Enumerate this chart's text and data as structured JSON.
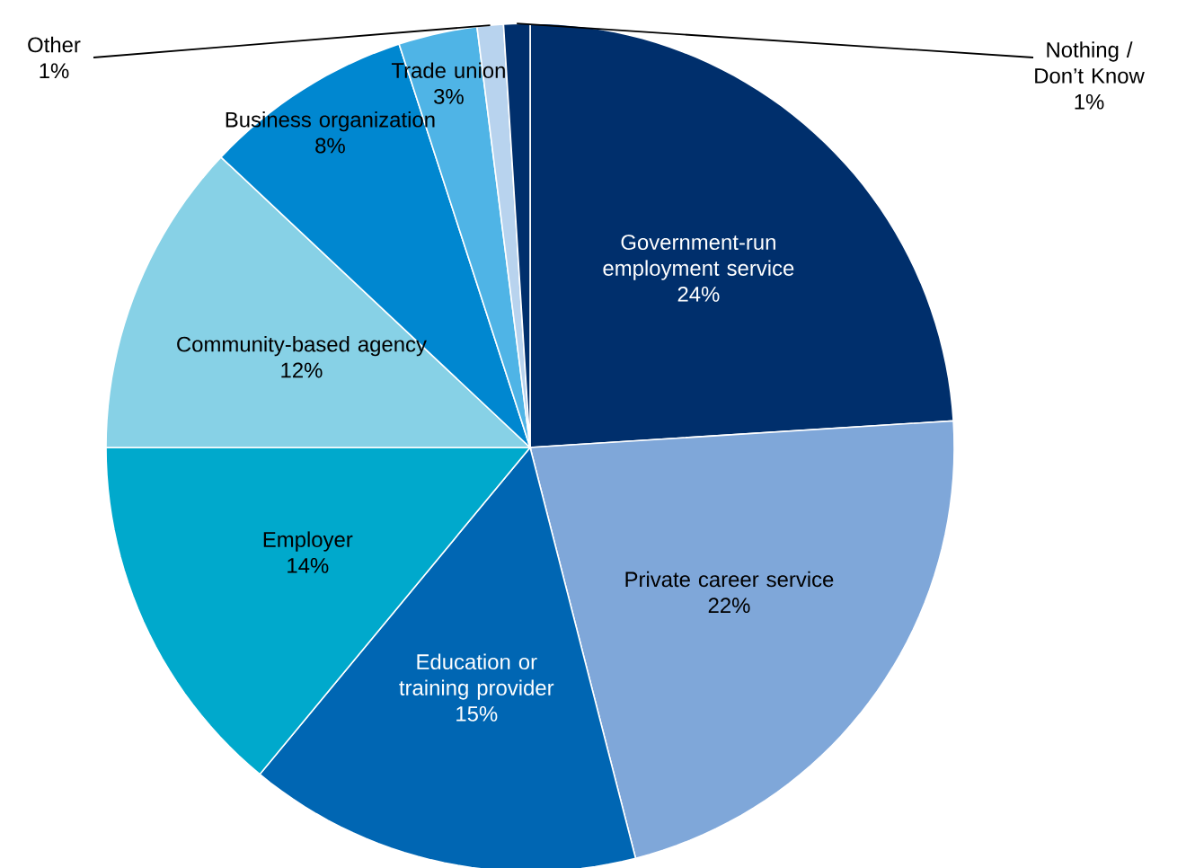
{
  "chart_data": {
    "type": "pie",
    "categories": [
      "Government-run employment service",
      "Private career service",
      "Education or training provider",
      "Employer",
      "Community-based agency",
      "Business organization",
      "Trade union",
      "Other",
      "Nothing / Don’t Know"
    ],
    "values": [
      24,
      22,
      15,
      14,
      12,
      8,
      3,
      1,
      1
    ],
    "colors": [
      "#002f6c",
      "#7fa7d9",
      "#0066b3",
      "#00a9cc",
      "#87d1e6",
      "#0087d0",
      "#4fb4e6",
      "#b8d3ee",
      "#002f6c"
    ],
    "value_labels": [
      "24%",
      "22%",
      "15%",
      "14%",
      "12%",
      "8%",
      "3%",
      "1%",
      "1%"
    ]
  }
}
